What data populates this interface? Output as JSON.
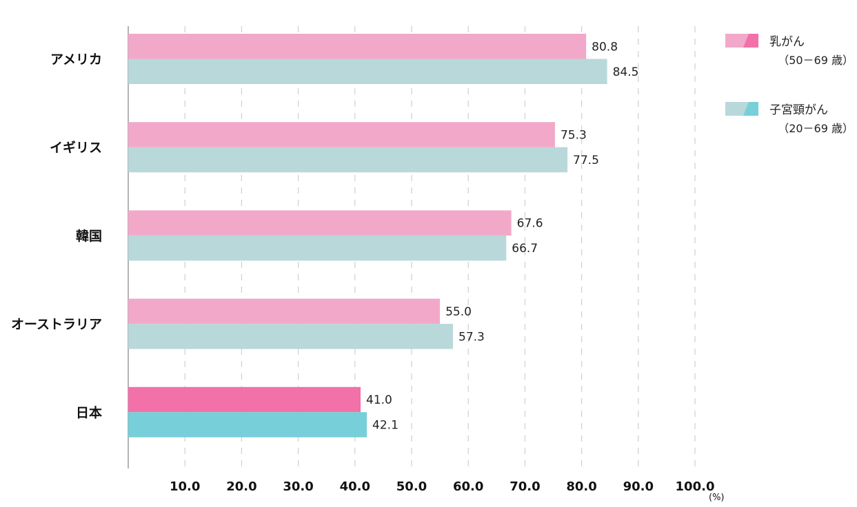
{
  "chart_data": {
    "type": "bar",
    "orientation": "horizontal",
    "categories": [
      "アメリカ",
      "イギリス",
      "韓国",
      "オーストラリア",
      "日本"
    ],
    "series": [
      {
        "name": "乳がん",
        "age_range": "（50－69 歳）",
        "color": "#f2a9c9",
        "highlight_color": "#f171a8",
        "values": [
          80.8,
          75.3,
          67.6,
          55.0,
          41.0
        ],
        "labels": [
          "80.8",
          "75.3",
          "67.6",
          "55.0",
          "41.0"
        ]
      },
      {
        "name": "子宮頸がん",
        "age_range": "（20－69 歳）",
        "color": "#b9d8da",
        "highlight_color": "#76cfd9",
        "values": [
          84.5,
          77.5,
          66.7,
          57.3,
          42.1
        ],
        "labels": [
          "84.5",
          "77.5",
          "66.7",
          "57.3",
          "42.1"
        ]
      }
    ],
    "highlight_category": "日本",
    "x_ticks": [
      "10.0",
      "20.0",
      "30.0",
      "40.0",
      "50.0",
      "60.0",
      "70.0",
      "80.0",
      "90.0",
      "100.0"
    ],
    "x_unit": "(%)",
    "xlim": [
      0,
      100
    ],
    "grid": "vertical dashed",
    "legend_position": "top-right"
  }
}
